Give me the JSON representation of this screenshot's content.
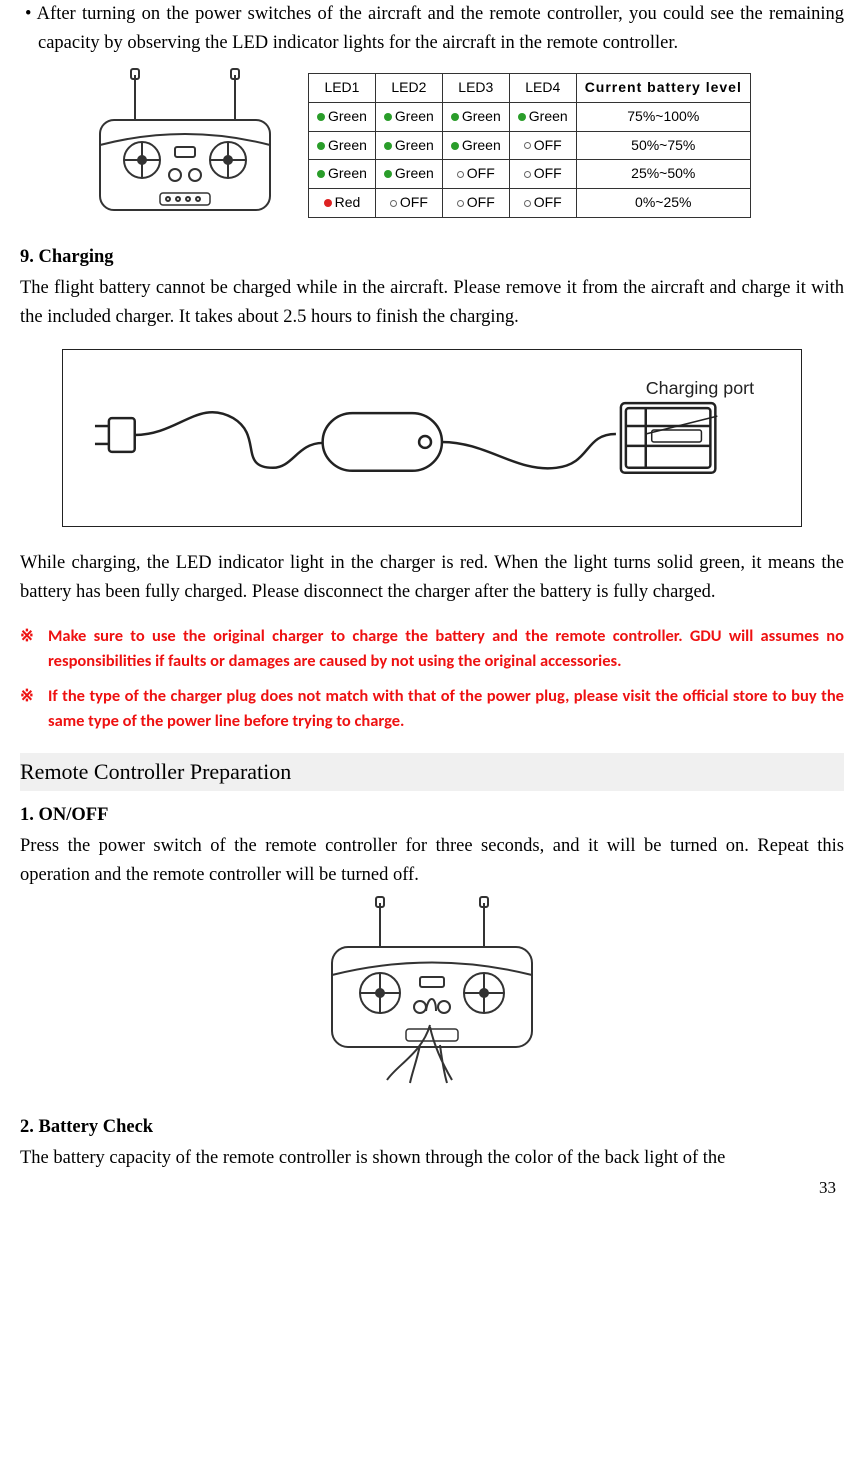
{
  "bullet1_line": "• After turning on the power switches of the aircraft and the remote controller, you could see the remaining capacity by observing the LED indicator lights for the aircraft in the remote controller.",
  "led_table": {
    "headers": [
      "LED1",
      "LED2",
      "LED3",
      "LED4",
      "Current battery level"
    ],
    "rows": [
      [
        {
          "c": "g",
          "t": "Green"
        },
        {
          "c": "g",
          "t": "Green"
        },
        {
          "c": "g",
          "t": "Green"
        },
        {
          "c": "g",
          "t": "Green"
        },
        "75%~100%"
      ],
      [
        {
          "c": "g",
          "t": "Green"
        },
        {
          "c": "g",
          "t": "Green"
        },
        {
          "c": "g",
          "t": "Green"
        },
        {
          "c": "o",
          "t": "OFF"
        },
        "50%~75%"
      ],
      [
        {
          "c": "g",
          "t": "Green"
        },
        {
          "c": "g",
          "t": "Green"
        },
        {
          "c": "o",
          "t": "OFF"
        },
        {
          "c": "o",
          "t": "OFF"
        },
        "25%~50%"
      ],
      [
        {
          "c": "r",
          "t": "Red"
        },
        {
          "c": "o",
          "t": "OFF"
        },
        {
          "c": "o",
          "t": "OFF"
        },
        {
          "c": "o",
          "t": "OFF"
        },
        "0%~25%"
      ]
    ]
  },
  "h_charging": "9. Charging",
  "p_charging": "The flight battery cannot be charged while in the aircraft. Please remove it from the aircraft and charge it with the included charger. It takes about 2.5 hours to finish the charging.",
  "charging_port_label": "Charging port",
  "p_charging2": "While charging, the LED indicator light in the charger is red. When the light turns solid green, it means the battery has been fully charged. Please disconnect the charger after the battery is fully charged.",
  "warn_mark": "※",
  "warn1": "Make sure to use the original charger to charge the battery and the remote controller. GDU will assumes no responsibilities if faults or damages are caused by not using the original accessories.",
  "warn2": "If the type of the charger plug does not match with that of the power plug, please visit the official store to buy the same type of the power line before trying to charge.",
  "section_remote": "Remote Controller Preparation",
  "h_onoff": "1. ON/OFF",
  "p_onoff": "Press the power switch of the remote controller for three seconds, and it will be turned on. Repeat this operation and the remote controller will be turned off.",
  "h_batt": "2. Battery Check",
  "p_batt": "The battery capacity of the remote controller is shown through the color of the back light of the",
  "page_num": "33"
}
